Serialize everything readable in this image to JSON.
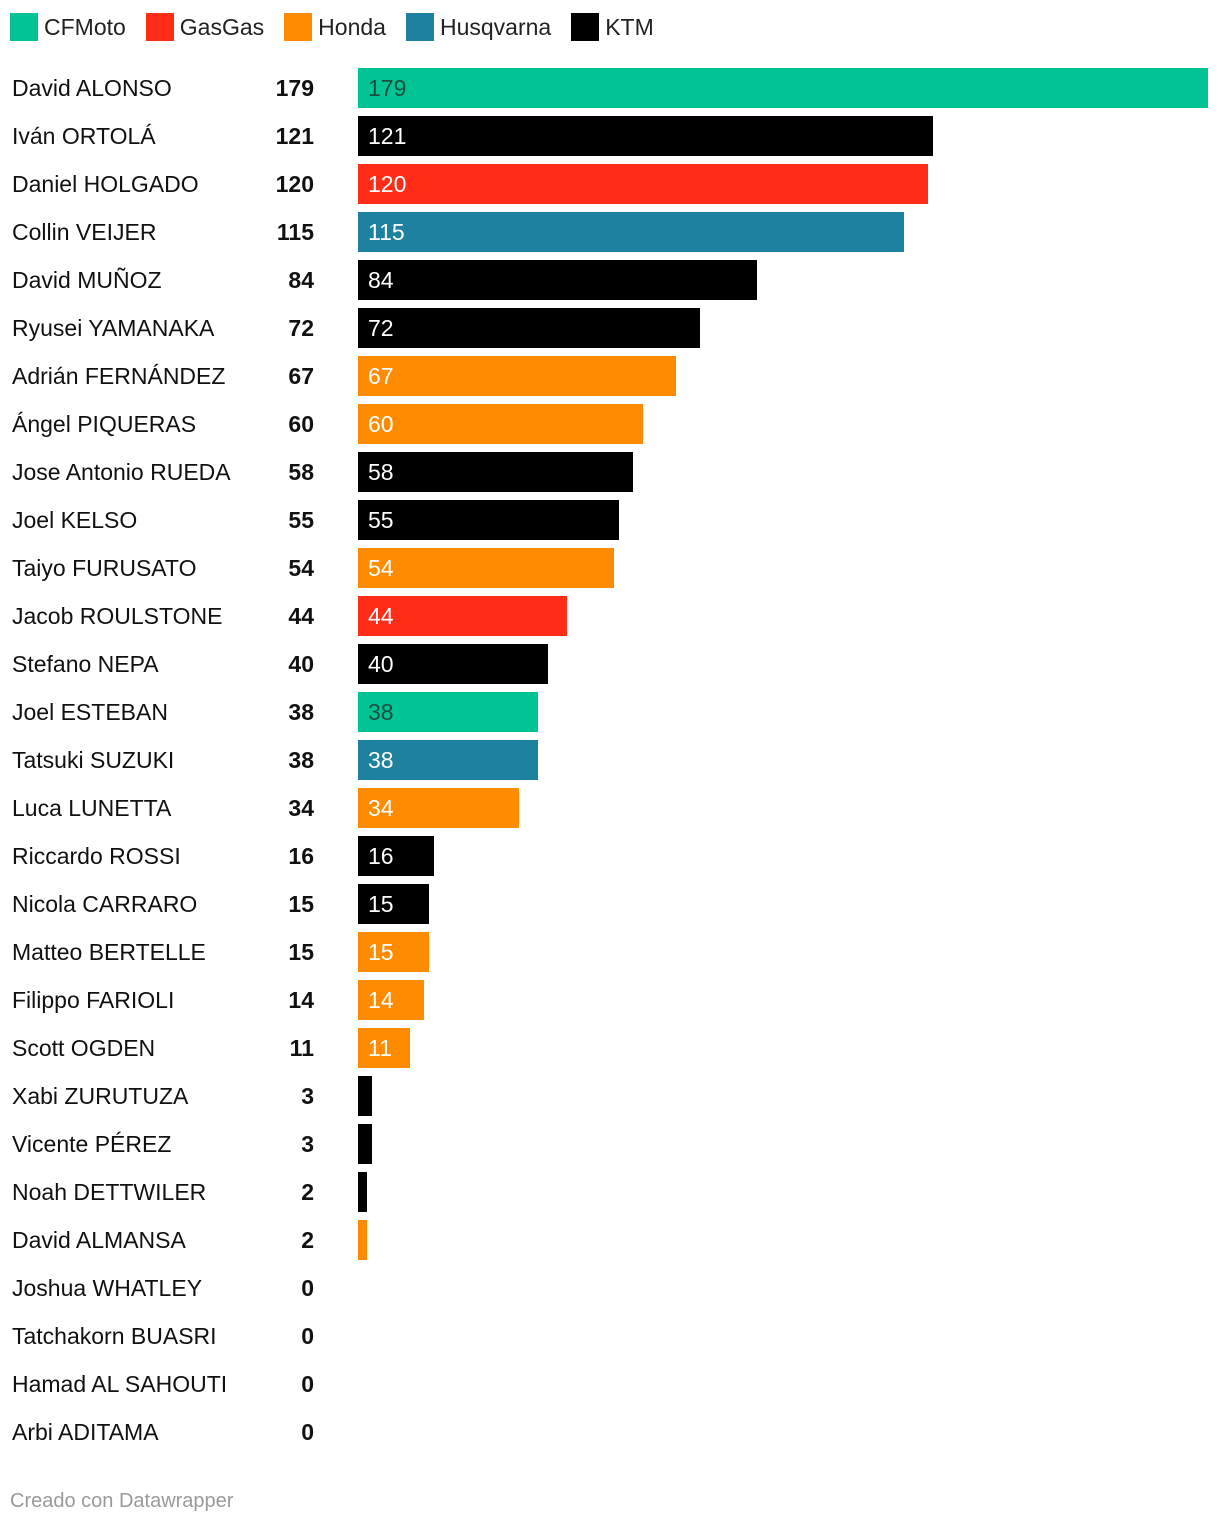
{
  "legend": [
    {
      "label": "CFMoto",
      "color": "#00c494"
    },
    {
      "label": "GasGas",
      "color": "#ff2d17"
    },
    {
      "label": "Honda",
      "color": "#ff8c00"
    },
    {
      "label": "Husqvarna",
      "color": "#1f81a0"
    },
    {
      "label": "KTM",
      "color": "#000000"
    }
  ],
  "chart_data": {
    "type": "bar",
    "orientation": "horizontal",
    "max_value": 179,
    "series_colors": {
      "CFMoto": "#00c494",
      "GasGas": "#ff2d17",
      "Honda": "#ff8c00",
      "Husqvarna": "#1f81a0",
      "KTM": "#000000"
    },
    "rows": [
      {
        "name": "David ALONSO",
        "value": 179,
        "brand": "CFMoto",
        "label": "179"
      },
      {
        "name": "Iván ORTOLÁ",
        "value": 121,
        "brand": "KTM",
        "label": "121"
      },
      {
        "name": "Daniel HOLGADO",
        "value": 120,
        "brand": "GasGas",
        "label": "120"
      },
      {
        "name": "Collin VEIJER",
        "value": 115,
        "brand": "Husqvarna",
        "label": "115"
      },
      {
        "name": "David MUÑOZ",
        "value": 84,
        "brand": "KTM",
        "label": "84"
      },
      {
        "name": "Ryusei YAMANAKA",
        "value": 72,
        "brand": "KTM",
        "label": "72"
      },
      {
        "name": "Adrián FERNÁNDEZ",
        "value": 67,
        "brand": "Honda",
        "label": "67"
      },
      {
        "name": "Ángel PIQUERAS",
        "value": 60,
        "brand": "Honda",
        "label": "60"
      },
      {
        "name": "Jose Antonio RUEDA",
        "value": 58,
        "brand": "KTM",
        "label": "58"
      },
      {
        "name": "Joel KELSO",
        "value": 55,
        "brand": "KTM",
        "label": "55"
      },
      {
        "name": "Taiyo FURUSATO",
        "value": 54,
        "brand": "Honda",
        "label": "54"
      },
      {
        "name": "Jacob ROULSTONE",
        "value": 44,
        "brand": "GasGas",
        "label": "44"
      },
      {
        "name": "Stefano NEPA",
        "value": 40,
        "brand": "KTM",
        "label": "40"
      },
      {
        "name": "Joel ESTEBAN",
        "value": 38,
        "brand": "CFMoto",
        "label": "38"
      },
      {
        "name": "Tatsuki SUZUKI",
        "value": 38,
        "brand": "Husqvarna",
        "label": "38"
      },
      {
        "name": "Luca LUNETTA",
        "value": 34,
        "brand": "Honda",
        "label": "34"
      },
      {
        "name": "Riccardo ROSSI",
        "value": 16,
        "brand": "KTM",
        "label": "16"
      },
      {
        "name": "Nicola CARRARO",
        "value": 15,
        "brand": "KTM",
        "label": "15"
      },
      {
        "name": "Matteo BERTELLE",
        "value": 15,
        "brand": "Honda",
        "label": "15"
      },
      {
        "name": "Filippo FARIOLI",
        "value": 14,
        "brand": "Honda",
        "label": "14"
      },
      {
        "name": "Scott OGDEN",
        "value": 11,
        "brand": "Honda",
        "label": "11"
      },
      {
        "name": "Xabi ZURUTUZA",
        "value": 3,
        "brand": "KTM",
        "label": ""
      },
      {
        "name": "Vicente PÉREZ",
        "value": 3,
        "brand": "KTM",
        "label": ""
      },
      {
        "name": "Noah DETTWILER",
        "value": 2,
        "brand": "KTM",
        "label": ""
      },
      {
        "name": "David ALMANSA",
        "value": 2,
        "brand": "Honda",
        "label": ""
      },
      {
        "name": "Joshua WHATLEY",
        "value": 0,
        "brand": "",
        "label": ""
      },
      {
        "name": "Tatchakorn BUASRI",
        "value": 0,
        "brand": "",
        "label": ""
      },
      {
        "name": "Hamad AL SAHOUTI",
        "value": 0,
        "brand": "",
        "label": ""
      },
      {
        "name": "Arbi ADITAMA",
        "value": 0,
        "brand": "",
        "label": ""
      }
    ]
  },
  "footer": "Creado con Datawrapper"
}
